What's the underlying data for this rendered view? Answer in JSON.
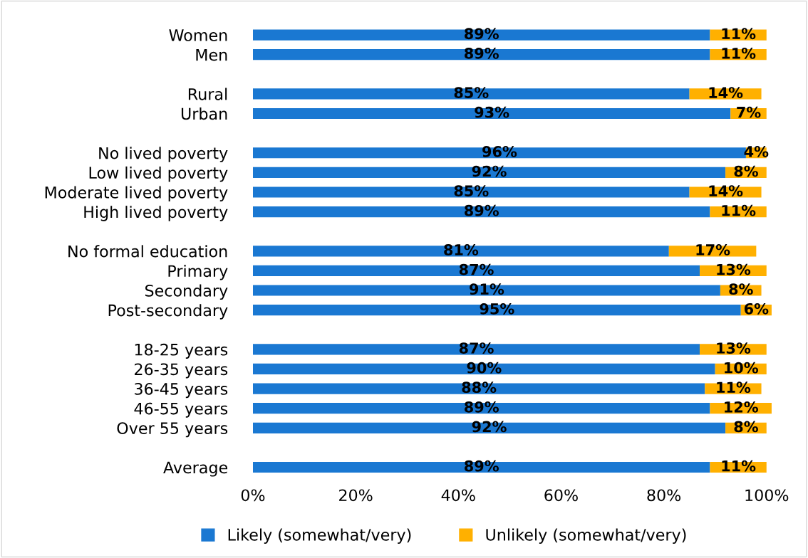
{
  "chart_data": {
    "type": "bar",
    "orientation": "horizontal",
    "stacked": true,
    "categories": [
      "Women",
      "Men",
      null,
      "Rural",
      "Urban",
      null,
      "No lived poverty",
      "Low lived poverty",
      "Moderate lived poverty",
      "High lived poverty",
      null,
      "No formal education",
      "Primary",
      "Secondary",
      "Post-secondary",
      null,
      "18-25 years",
      "26-35 years",
      "36-45 years",
      "46-55 years",
      "Over 55 years",
      null,
      "Average"
    ],
    "series": [
      {
        "name": "Likely (somewhat/very)",
        "color": "#1a78d2",
        "values": [
          89,
          89,
          null,
          85,
          93,
          null,
          96,
          92,
          85,
          89,
          null,
          81,
          87,
          91,
          95,
          null,
          87,
          90,
          88,
          89,
          92,
          null,
          89
        ],
        "value_labels": [
          "89%",
          "89%",
          null,
          "85%",
          "93%",
          null,
          "96%",
          "92%",
          "85%",
          "89%",
          null,
          "81%",
          "87%",
          "91%",
          "95%",
          null,
          "87%",
          "90%",
          "88%",
          "89%",
          "92%",
          null,
          "89%"
        ]
      },
      {
        "name": "Unlikely (somewhat/very)",
        "color": "#ffb000",
        "values": [
          11,
          11,
          null,
          14,
          7,
          null,
          4,
          8,
          14,
          11,
          null,
          17,
          13,
          8,
          6,
          null,
          13,
          10,
          11,
          12,
          8,
          null,
          11
        ],
        "value_labels": [
          "11%",
          "11%",
          null,
          "14%",
          "7%",
          null,
          "4%",
          "8%",
          "14%",
          "11%",
          null,
          "17%",
          "13%",
          "8%",
          "6%",
          null,
          "13%",
          "10%",
          "11%",
          "12%",
          "8%",
          null,
          "11%"
        ]
      }
    ],
    "xlim": [
      0,
      101
    ],
    "xticks": [
      {
        "value": 0,
        "label": "0%"
      },
      {
        "value": 20,
        "label": "20%"
      },
      {
        "value": 40,
        "label": "40%"
      },
      {
        "value": 60,
        "label": "60%"
      },
      {
        "value": 80,
        "label": "80%"
      },
      {
        "value": 100,
        "label": "100%"
      }
    ],
    "grid": false,
    "legend": "bottom"
  }
}
